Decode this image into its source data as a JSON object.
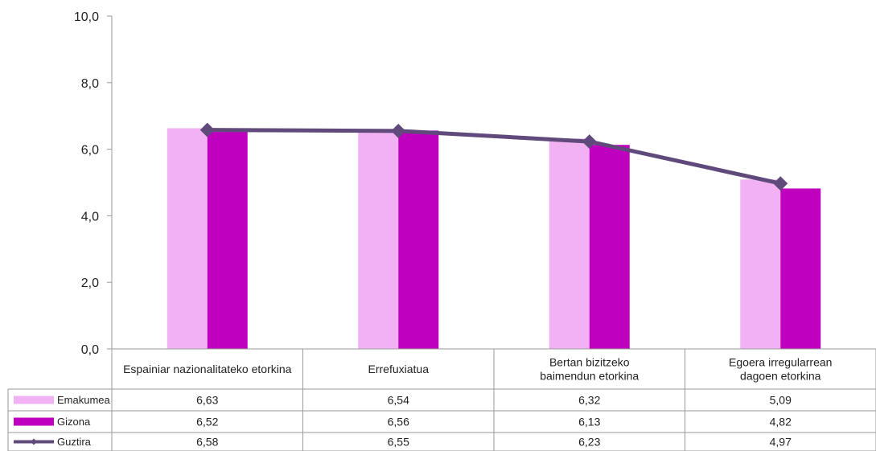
{
  "chart_data": {
    "type": "bar",
    "categories": [
      "Espainiar nazionalitateko etorkina",
      "Errefuxiatua",
      "Bertan bizitzeko baimendun etorkina",
      "Egoera irregularrean dagoen etorkina"
    ],
    "category_lines": [
      [
        "Espainiar nazionalitateko etorkina"
      ],
      [
        "Errefuxiatua"
      ],
      [
        "Bertan bizitzeko",
        "baimendun etorkina"
      ],
      [
        "Egoera irregularrean",
        "dagoen etorkina"
      ]
    ],
    "series": [
      {
        "name": "Emakumea",
        "kind": "bar",
        "color": "#f2b1f2",
        "values": [
          6.63,
          6.54,
          6.32,
          5.09
        ]
      },
      {
        "name": "Gizona",
        "kind": "bar",
        "color": "#bf00bf",
        "values": [
          6.52,
          6.56,
          6.13,
          4.82
        ]
      },
      {
        "name": "Guztira",
        "kind": "line",
        "color": "#604a7b",
        "values": [
          6.58,
          6.55,
          6.23,
          4.97
        ]
      }
    ],
    "value_labels": [
      [
        "6,63",
        "6,54",
        "6,32",
        "5,09"
      ],
      [
        "6,52",
        "6,56",
        "6,13",
        "4,82"
      ],
      [
        "6,58",
        "6,55",
        "6,23",
        "4,97"
      ]
    ],
    "yticks": [
      "0,0",
      "2,0",
      "4,0",
      "6,0",
      "8,0",
      "10,0"
    ],
    "ylim": [
      0,
      10
    ],
    "grid": false,
    "legend": "data-table",
    "title": "",
    "xlabel": "",
    "ylabel": ""
  }
}
